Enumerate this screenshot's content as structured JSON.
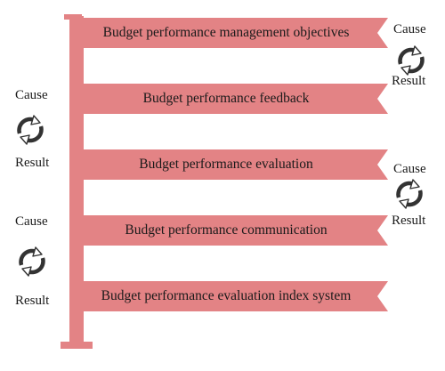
{
  "colors": {
    "banner_fill": "#E38385",
    "pole_fill": "#E38385",
    "arrow_stroke": "#333333",
    "text": "#1a1a1a"
  },
  "banners": [
    {
      "text": "Budget performance management objectives"
    },
    {
      "text": "Budget performance feedback"
    },
    {
      "text": "Budget performance evaluation"
    },
    {
      "text": "Budget performance communication"
    },
    {
      "text": "Budget performance evaluation index system"
    }
  ],
  "cycles": [
    {
      "side": "right",
      "cause": "Cause",
      "result": "Result",
      "icon": "circular-arrows-icon"
    },
    {
      "side": "left",
      "cause": "Cause",
      "result": "Result",
      "icon": "circular-arrows-icon"
    },
    {
      "side": "right",
      "cause": "Cause",
      "result": "Result",
      "icon": "circular-arrows-icon"
    },
    {
      "side": "left",
      "cause": "Cause",
      "result": "Result",
      "icon": "circular-arrows-icon"
    }
  ]
}
